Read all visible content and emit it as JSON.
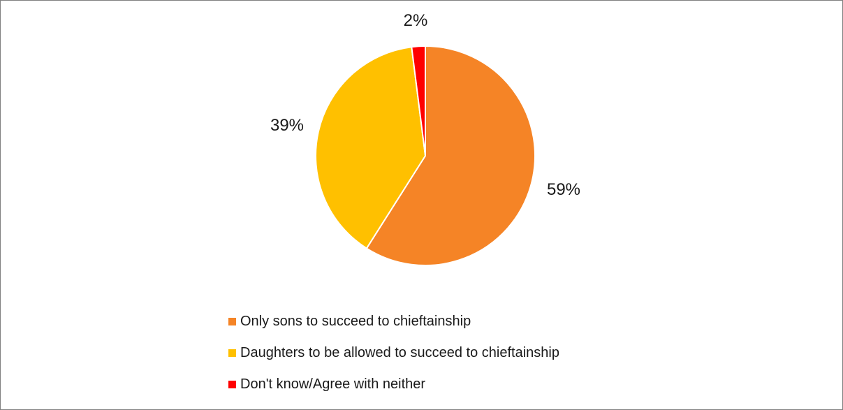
{
  "chart_data": {
    "type": "pie",
    "title": "",
    "start_angle_deg": 0,
    "direction": "clockwise",
    "slices": [
      {
        "label": "Only sons to succeed to chieftainship",
        "value": 59,
        "value_label": "59%",
        "color": "#F58426"
      },
      {
        "label": "Daughters to be allowed to succeed to chieftainship",
        "value": 39,
        "value_label": "39%",
        "color": "#FFC000"
      },
      {
        "label": "Don't know/Agree with neither",
        "value": 2,
        "value_label": "2%",
        "color": "#FF0000"
      }
    ],
    "legend_position": "bottom",
    "slice_border_color": "#FFFFFF"
  },
  "legend": {
    "items": [
      {
        "label": "Only sons to succeed to chieftainship",
        "color": "#F58426"
      },
      {
        "label": "Daughters to be allowed to succeed to chieftainship",
        "color": "#FFC000"
      },
      {
        "label": "Don't know/Agree with neither",
        "color": "#FF0000"
      }
    ]
  }
}
